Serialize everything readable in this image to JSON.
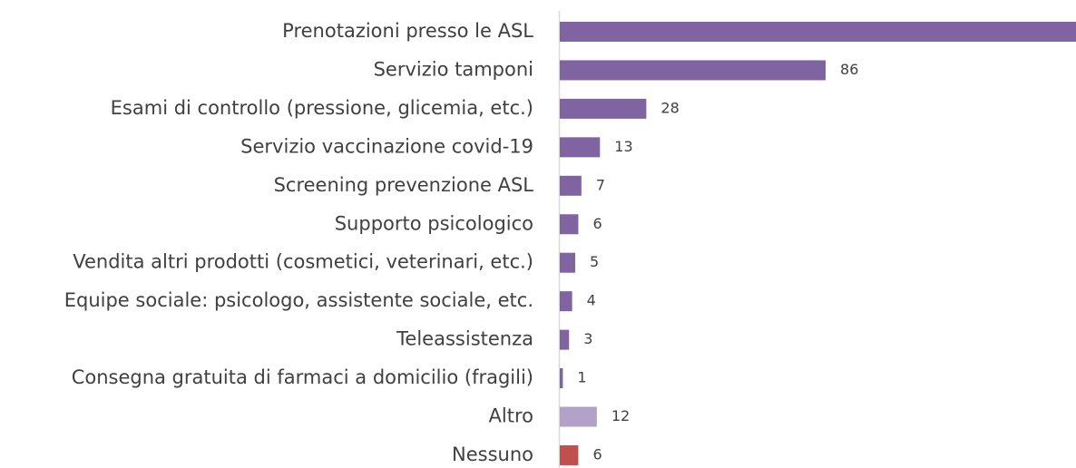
{
  "chart_data": {
    "type": "bar",
    "orientation": "horizontal",
    "categories": [
      "Prenotazioni presso le ASL",
      "Servizio tamponi",
      "Esami di controllo (pressione, glicemia, etc.)",
      "Servizio vaccinazione covid-19",
      "Screening prevenzione ASL",
      "Supporto psicologico",
      "Vendita altri prodotti (cosmetici, veterinari, etc.)",
      "Equipe sociale: psicologo, assistente sociale, etc.",
      "Teleassistenza",
      "Consegna gratuita di farmaci a domicilio (fragili)",
      "Altro",
      "Nessuno"
    ],
    "values": [
      167,
      86,
      28,
      13,
      7,
      6,
      5,
      4,
      3,
      1,
      12,
      6
    ],
    "colors": [
      "#8064a2",
      "#8064a2",
      "#8064a2",
      "#8064a2",
      "#8064a2",
      "#8064a2",
      "#8064a2",
      "#8064a2",
      "#8064a2",
      "#8064a2",
      "#b3a2c7",
      "#c0504d"
    ],
    "xlim": [
      0,
      167
    ]
  }
}
